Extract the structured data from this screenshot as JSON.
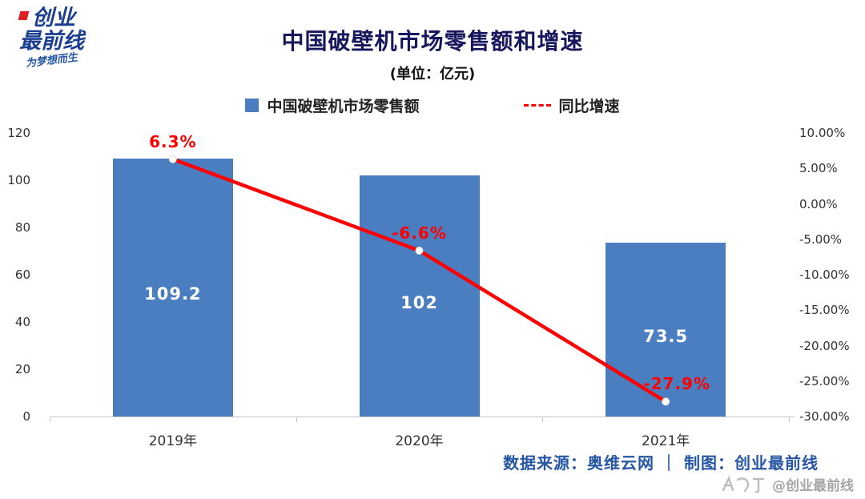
{
  "logo": {
    "line1": "创业",
    "line2": "最前线",
    "tagline": "为梦想而生"
  },
  "header": {
    "title": "中国破壁机市场零售额和增速",
    "subtitle": "(单位：亿元)"
  },
  "legend": {
    "bar_label": "中国破壁机市场零售额",
    "line_label": "同比增速"
  },
  "colors": {
    "bar": "#4a7ec1",
    "line": "#fe0000",
    "accent_blue": "#2456a4",
    "title": "#17175e"
  },
  "chart_data": {
    "type": "bar+line",
    "title": "中国破壁机市场零售额和增速",
    "unit_note": "(单位：亿元)",
    "categories": [
      "2019年",
      "2020年",
      "2021年"
    ],
    "series": [
      {
        "name": "中国破壁机市场零售额",
        "type": "bar",
        "axis": "left",
        "values": [
          109.2,
          102,
          73.5
        ],
        "labels": [
          "109.2",
          "102",
          "73.5"
        ]
      },
      {
        "name": "同比增速",
        "type": "line",
        "axis": "right",
        "values": [
          6.3,
          -6.6,
          -27.9
        ],
        "labels": [
          "6.3%",
          "-6.6%",
          "-27.9%"
        ]
      }
    ],
    "left_axis": {
      "min": 0,
      "max": 120,
      "ticks": [
        120,
        100,
        80,
        60,
        40,
        20,
        0
      ]
    },
    "right_axis": {
      "min": -30,
      "max": 10,
      "ticks": [
        "10.00%",
        "5.00%",
        "0.00%",
        "-5.00%",
        "-10.00%",
        "-15.00%",
        "-20.00%",
        "-25.00%",
        "-30.00%"
      ]
    },
    "grid": false,
    "legend_position": "top"
  },
  "footer": {
    "source": "数据来源：奥维云网 ｜ 制图：创业最前线",
    "watermark": "@创业最前线"
  }
}
